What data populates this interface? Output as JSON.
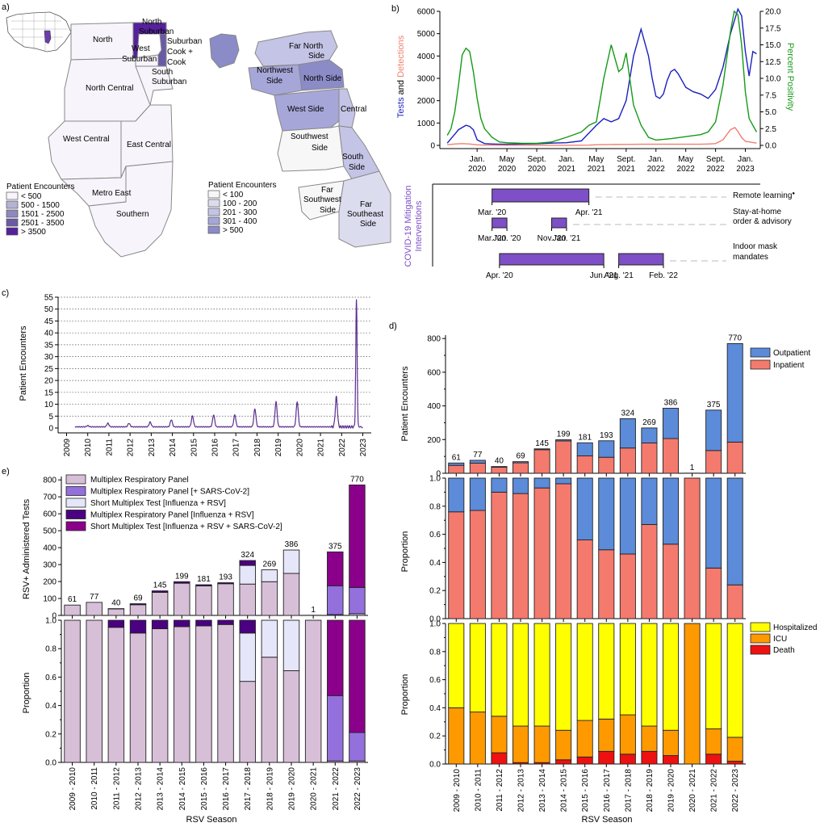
{
  "panel_labels": {
    "a": "a)",
    "b": "b)",
    "c": "c)",
    "d": "d)",
    "e": "e)"
  },
  "colors": {
    "illinois": [
      "#f7f5fb",
      "#b6b2d6",
      "#8e88c0",
      "#6a5aa5",
      "#55229a"
    ],
    "chicago": [
      "#f7f7f7",
      "#dcdcef",
      "#c4c4e6",
      "#a6a6d8",
      "#8b8bc8"
    ],
    "tests": "#1a1fbf",
    "detections": "#f08070",
    "positivity": "#169a16",
    "intervention": "#7e4fc7",
    "timeline": "#6e3aa1",
    "outpatient": "#5b8bd9",
    "inpatient": "#f47a6e",
    "hospitalized": "#ffff00",
    "icu": "#ff9900",
    "death": "#ee1111",
    "mrp": "#d8bfd8",
    "mrp_cov": "#9370db",
    "short_test": "#e6e6fa",
    "mrp_flu": "#4b0082",
    "short_test_cov": "#8b008b"
  },
  "map_a": {
    "illinois_regions": [
      "North",
      "North Suburban",
      "Suburban Cook + Cook",
      "West Suburban",
      "South Suburban",
      "North Central",
      "West Central",
      "East Central",
      "Metro East",
      "Southern"
    ],
    "chicago_regions": [
      "Far North Side",
      "Northwest Side",
      "North Side",
      "West Side",
      "Central",
      "Southwest Side",
      "South Side",
      "Far Southwest Side",
      "Far Southeast Side"
    ],
    "illinois_legend": {
      "title": "Patient Encounters",
      "items": [
        "< 500",
        "500 - 1500",
        "1501 - 2500",
        "2501 - 3500",
        "> 3500"
      ]
    },
    "chicago_legend": {
      "title": "Patient Encounters",
      "items": [
        "< 100",
        "100 - 200",
        "201 - 300",
        "301 - 400",
        "> 500"
      ]
    }
  },
  "chart_data": [
    {
      "id": "b",
      "type": "line",
      "ylabel_left": [
        "Tests",
        " and ",
        "Detections"
      ],
      "ylabel_right": "Percent Positivity",
      "ylim_left": [
        0,
        6000
      ],
      "ylim_right": [
        0,
        20
      ],
      "yticks_left": [
        "0",
        "1000",
        "2000",
        "3000",
        "4000",
        "5000",
        "6000"
      ],
      "yticks_right": [
        "0.0",
        "2.5",
        "5.0",
        "7.5",
        "10.0",
        "12.5",
        "15.0",
        "17.5",
        "20.0"
      ],
      "xticks": [
        [
          "Jan.",
          "2020"
        ],
        [
          "May",
          "2020"
        ],
        [
          "Sept.",
          "2020"
        ],
        [
          "Jan.",
          "2021"
        ],
        [
          "May",
          "2021"
        ],
        [
          "Sept.",
          "2021"
        ],
        [
          "Jan.",
          "2022"
        ],
        [
          "May",
          "2022"
        ],
        [
          "Sept.",
          "2022"
        ],
        [
          "Jan.",
          "2023"
        ]
      ],
      "x_range": [
        "Sept. 2019",
        "Feb. 2023"
      ],
      "series": [
        {
          "key": "tests",
          "axis": "left",
          "t": [
            0,
            0.5,
            1,
            1.5,
            2,
            2.5,
            3,
            3.5,
            4,
            5,
            6,
            7,
            8,
            10,
            12,
            14,
            16,
            18,
            20,
            21,
            22,
            23,
            24,
            25,
            26,
            27,
            27.5,
            28,
            28.5,
            29,
            29.5,
            30,
            30.5,
            31,
            32,
            33,
            34,
            35,
            36,
            37,
            38,
            39,
            39.5,
            40,
            40.5,
            41,
            41.5
          ],
          "v": [
            100,
            300,
            500,
            700,
            800,
            900,
            850,
            700,
            250,
            80,
            60,
            50,
            50,
            60,
            70,
            100,
            120,
            200,
            900,
            1200,
            1050,
            1200,
            2000,
            4000,
            5200,
            4000,
            3000,
            2200,
            2100,
            2300,
            2900,
            3300,
            3400,
            3200,
            2600,
            2400,
            2300,
            2100,
            2500,
            3500,
            5000,
            6100,
            5800,
            4200,
            3100,
            4200,
            4100
          ]
        },
        {
          "key": "detections",
          "axis": "left",
          "t": [
            0,
            1,
            2,
            3,
            4,
            5,
            8,
            16,
            19,
            20,
            22,
            24,
            26,
            28,
            31,
            32,
            33,
            34,
            35,
            36,
            37,
            38,
            38.6,
            39,
            39.5,
            40,
            41.5
          ],
          "v": [
            30,
            60,
            80,
            60,
            25,
            10,
            5,
            5,
            10,
            30,
            40,
            45,
            50,
            50,
            50,
            50,
            50,
            50,
            60,
            80,
            250,
            700,
            800,
            620,
            350,
            180,
            100
          ]
        },
        {
          "key": "positivity",
          "axis": "right",
          "t": [
            0,
            0.5,
            1,
            1.5,
            2,
            2.5,
            3,
            3.5,
            4,
            4.5,
            5,
            6,
            7,
            8,
            10,
            12,
            14,
            16,
            18,
            19,
            20,
            21,
            22,
            23,
            23.5,
            24,
            25,
            26,
            27,
            28,
            30,
            32,
            34,
            35,
            36,
            37,
            38,
            38.5,
            39,
            39.5,
            40,
            40.5,
            41,
            41.5
          ],
          "v": [
            1.5,
            2.5,
            5,
            9,
            13.5,
            14.5,
            14,
            11,
            7,
            4,
            2.5,
            1.2,
            0.5,
            0.4,
            0.3,
            0.3,
            0.5,
            1.2,
            2,
            3,
            3.5,
            10,
            15,
            11,
            11.5,
            13.8,
            6,
            3,
            1.2,
            0.8,
            1,
            1.3,
            1.6,
            2,
            3.5,
            9,
            17,
            20,
            19.5,
            15,
            8,
            4,
            3,
            2
          ]
        }
      ],
      "interventions": {
        "ylabel": "COVID-19 Mitigation Interventions",
        "rows": [
          {
            "label": "Remote learning",
            "mark": "●",
            "bars": [
              {
                "start_label": "Mar. '20",
                "end_label": "Apr. '21",
                "t0": 6,
                "t1": 19
              }
            ]
          },
          {
            "label": "Stay-at-home order & advisory",
            "lines": [
              "Stay-at-home",
              "order & advisory"
            ],
            "bars": [
              {
                "start_label": "Mar. '20",
                "end_label": "Jun. '20",
                "t0": 6,
                "t1": 8
              },
              {
                "start_label": "Nov. '20",
                "end_label": "Jan. '21",
                "t0": 14,
                "t1": 16
              }
            ]
          },
          {
            "label": "Indoor mask mandates",
            "lines": [
              "Indoor mask",
              "mandates"
            ],
            "bars": [
              {
                "start_label": "Apr. '20",
                "end_label": "Jun. '21",
                "t0": 7,
                "t1": 21
              },
              {
                "start_label": "Aug. '21",
                "end_label": "Feb. '22",
                "t0": 23,
                "t1": 29
              }
            ]
          }
        ]
      }
    },
    {
      "id": "c",
      "type": "line",
      "ylabel": "Patient Encounters",
      "ylim": [
        0,
        55
      ],
      "yticks": [
        "0",
        "5",
        "10",
        "15",
        "20",
        "25",
        "30",
        "35",
        "40",
        "45",
        "50",
        "55"
      ],
      "xticks": [
        "2009",
        "2010",
        "2011",
        "2012",
        "2013",
        "2014",
        "2015",
        "2016",
        "2017",
        "2018",
        "2019",
        "2020",
        "2021",
        "2022",
        "2023"
      ],
      "grid": "horizontal dotted",
      "series": [
        {
          "name": "",
          "peaks": [
            [
              2010.0,
              1
            ],
            [
              2010.95,
              2
            ],
            [
              2011.95,
              2
            ],
            [
              2012.95,
              2.5
            ],
            [
              2013.95,
              3.5
            ],
            [
              2014.95,
              5
            ],
            [
              2015.95,
              5.5
            ],
            [
              2016.95,
              5.5
            ],
            [
              2017.9,
              8
            ],
            [
              2018.9,
              11
            ],
            [
              2019.9,
              11
            ],
            [
              2021.75,
              13
            ],
            [
              2022.7,
              54
            ]
          ],
          "baseline": 0.5
        }
      ]
    },
    {
      "id": "d",
      "type": "bar",
      "categories": [
        "2009 - 2010",
        "2010 - 2011",
        "2011 - 2012",
        "2012 - 2013",
        "2013 - 2014",
        "2014 - 2015",
        "2015 - 2016",
        "2016 - 2017",
        "2017 - 2018",
        "2018 - 2019",
        "2019 - 2020",
        "2020 - 2021",
        "2021 - 2022",
        "2022 - 2023"
      ],
      "xlabel": "RSV Season",
      "totals": [
        61,
        77,
        40,
        69,
        145,
        199,
        181,
        193,
        324,
        269,
        386,
        1,
        375,
        770
      ],
      "counts": {
        "ylabel": "Patient Encounters",
        "ylim": [
          0,
          800
        ],
        "yticks": [
          "0",
          "200",
          "400",
          "600",
          "800"
        ],
        "series": [
          {
            "name": "Inpatient",
            "values": [
              47,
              60,
              36,
              62,
              140,
              192,
              103,
              95,
              150,
              180,
              206,
              1,
              135,
              185
            ]
          },
          {
            "name": "Outpatient",
            "values": [
              14,
              17,
              4,
              7,
              5,
              7,
              78,
              98,
              174,
              89,
              180,
              0,
              240,
              585
            ]
          }
        ]
      },
      "proportion": {
        "ylabel": "Proportion",
        "ylim": [
          0,
          1
        ],
        "yticks": [
          "0.0",
          "0.2",
          "0.4",
          "0.6",
          "0.8",
          "1.0"
        ],
        "series": [
          {
            "name": "Inpatient",
            "values": [
              0.76,
              0.77,
              0.9,
              0.89,
              0.93,
              0.96,
              0.56,
              0.49,
              0.46,
              0.67,
              0.53,
              1.0,
              0.36,
              0.24
            ]
          },
          {
            "name": "Outpatient",
            "values": [
              0.24,
              0.23,
              0.1,
              0.11,
              0.07,
              0.04,
              0.44,
              0.51,
              0.54,
              0.33,
              0.47,
              0.0,
              0.64,
              0.76
            ]
          }
        ]
      },
      "severity": {
        "ylabel": "Proportion",
        "ylim": [
          0,
          1
        ],
        "yticks": [
          "0.0",
          "0.2",
          "0.4",
          "0.6",
          "0.8",
          "1.0"
        ],
        "series": [
          {
            "name": "Death",
            "values": [
              0,
              0,
              0.08,
              0.01,
              0.01,
              0.03,
              0.05,
              0.09,
              0.07,
              0.09,
              0.06,
              0,
              0.07,
              0.02
            ]
          },
          {
            "name": "ICU",
            "values": [
              0.4,
              0.37,
              0.26,
              0.26,
              0.26,
              0.21,
              0.26,
              0.23,
              0.28,
              0.18,
              0.18,
              1.0,
              0.18,
              0.17
            ]
          },
          {
            "name": "Hospitalized",
            "values": [
              0.6,
              0.63,
              0.66,
              0.73,
              0.73,
              0.76,
              0.69,
              0.68,
              0.65,
              0.73,
              0.76,
              0,
              0.75,
              0.81
            ]
          }
        ]
      }
    },
    {
      "id": "e",
      "type": "bar",
      "categories": [
        "2009 - 2010",
        "2010 - 2011",
        "2011 - 2012",
        "2012 - 2013",
        "2013 - 2014",
        "2014 - 2015",
        "2015 - 2016",
        "2016 - 2017",
        "2017 - 2018",
        "2018 - 2019",
        "2019 - 2020",
        "2020 - 2021",
        "2021 - 2022",
        "2022 - 2023"
      ],
      "xlabel": "RSV Season",
      "totals": [
        61,
        77,
        40,
        69,
        145,
        199,
        181,
        193,
        324,
        269,
        386,
        1,
        375,
        770
      ],
      "counts": {
        "ylabel": "RSV+ Administered Tests",
        "ylim": [
          0,
          800
        ],
        "yticks": [
          "0",
          "100",
          "200",
          "300",
          "400",
          "500",
          "600",
          "700",
          "800"
        ],
        "series": [
          {
            "name": "Multiplex Respiratory Panel",
            "values": [
              61,
              77,
              38,
              63,
              136,
              190,
              174,
              187,
              185,
              199,
              248,
              1,
              5,
              10
            ]
          },
          {
            "name": "Multiplex Respiratory Panel  [+ SARS-CoV-2]",
            "values": [
              0,
              0,
              0,
              0,
              0,
              0,
              0,
              0,
              0,
              0,
              0,
              0,
              170,
              155
            ]
          },
          {
            "name": "Short Multiplex Test [Influenza + RSV]",
            "values": [
              0,
              0,
              0,
              0,
              0,
              0,
              0,
              0,
              110,
              70,
              138,
              0,
              0,
              0
            ]
          },
          {
            "name": "Multiplex Respiratory Panel [Influenza + RSV]",
            "values": [
              0,
              0,
              2,
              6,
              9,
              9,
              7,
              6,
              29,
              0,
              0,
              0,
              0,
              0
            ]
          },
          {
            "name": "Short Multiplex Test [Influenza + RSV + SARS-CoV-2]",
            "values": [
              0,
              0,
              0,
              0,
              0,
              0,
              0,
              0,
              0,
              0,
              0,
              0,
              200,
              605
            ]
          }
        ]
      },
      "proportion": {
        "ylabel": "Proportion",
        "ylim": [
          0,
          1
        ],
        "yticks": [
          "0.0",
          "0.2",
          "0.4",
          "0.6",
          "0.8",
          "1.0"
        ],
        "series": [
          {
            "name": "Multiplex Respiratory Panel",
            "values": [
              1,
              1,
              0.95,
              0.91,
              0.94,
              0.955,
              0.96,
              0.97,
              0.57,
              0.74,
              0.645,
              1,
              0.01,
              0.01
            ]
          },
          {
            "name": "Multiplex Respiratory Panel  [+ SARS-CoV-2]",
            "values": [
              0,
              0,
              0,
              0,
              0,
              0,
              0,
              0,
              0,
              0,
              0,
              0,
              0.46,
              0.2
            ]
          },
          {
            "name": "Short Multiplex Test [Influenza + RSV]",
            "values": [
              0,
              0,
              0,
              0,
              0,
              0,
              0,
              0,
              0.34,
              0.26,
              0.355,
              0,
              0,
              0
            ]
          },
          {
            "name": "Multiplex Respiratory Panel [Influenza + RSV]",
            "values": [
              0,
              0,
              0.05,
              0.09,
              0.06,
              0.045,
              0.04,
              0.03,
              0.09,
              0,
              0,
              0,
              0,
              0
            ]
          },
          {
            "name": "Short Multiplex Test [Influenza + RSV + SARS-CoV-2]",
            "values": [
              0,
              0,
              0,
              0,
              0,
              0,
              0,
              0,
              0,
              0,
              0,
              0,
              0.53,
              0.79
            ]
          }
        ]
      }
    }
  ]
}
